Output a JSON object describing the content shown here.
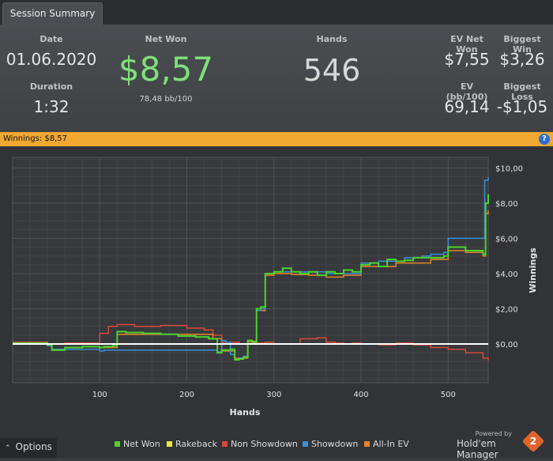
{
  "tab": {
    "label": "Session Summary"
  },
  "summary": {
    "date_label": "Date",
    "date_value": "01.06.2020",
    "duration_label": "Duration",
    "duration_value": "1:32",
    "net_won_label": "Net Won",
    "net_won_value": "$8,57",
    "bb100": "78,48 bb/100",
    "hands_label": "Hands",
    "hands_value": "546",
    "ev_net_won_label": "EV Net Won",
    "ev_net_won_value": "$7,55",
    "biggest_win_label": "Biggest Win",
    "biggest_win_value": "$3,26",
    "ev_bb_label": "EV (bb/100)",
    "ev_bb_value": "69,14",
    "biggest_loss_label": "Biggest Loss",
    "biggest_loss_value": "-$1,05"
  },
  "winnings_bar": {
    "text": "Winnings: $8,57",
    "help": "?"
  },
  "footer": {
    "options_label": "Options",
    "powered_by": "Powered by",
    "brand": "Hold'em Manager",
    "brand_badge": "2"
  },
  "colors": {
    "net_won": "#4cd42e",
    "rakeback": "#e8e840",
    "non_showdown": "#d9483c",
    "showdown": "#3a8fd8",
    "all_in_ev": "#e8852a",
    "accent": "#f0a830"
  },
  "chart_data": {
    "type": "line",
    "xlabel": "Hands",
    "ylabel": "Winnings",
    "xlim": [
      0,
      546
    ],
    "ylim": [
      -2.2,
      10.6
    ],
    "x_ticks": [
      100,
      200,
      300,
      400,
      500
    ],
    "y_ticks": [
      0,
      2,
      4,
      6,
      8,
      10
    ],
    "y_tick_labels": [
      "$0,00",
      "$2,00",
      "$4,00",
      "$6,00",
      "$8,00",
      "$10,00"
    ],
    "grid": true,
    "legend_position": "bottom",
    "series": [
      {
        "name": "Net Won",
        "color_key": "net_won",
        "x": [
          0,
          40,
          45,
          60,
          80,
          100,
          105,
          115,
          120,
          130,
          150,
          170,
          190,
          210,
          225,
          235,
          240,
          250,
          255,
          260,
          265,
          270,
          275,
          280,
          285,
          290,
          300,
          310,
          320,
          330,
          340,
          350,
          360,
          370,
          380,
          390,
          400,
          410,
          420,
          430,
          440,
          450,
          460,
          480,
          495,
          500,
          520,
          540,
          543,
          546
        ],
        "y": [
          0.05,
          -0.05,
          -0.35,
          -0.2,
          -0.15,
          -0.2,
          -0.15,
          -0.1,
          0.7,
          0.65,
          0.6,
          0.55,
          0.45,
          0.4,
          0.3,
          -0.5,
          -0.35,
          -0.3,
          -0.9,
          -0.85,
          -0.75,
          0.2,
          0.1,
          2.0,
          2.1,
          4.0,
          4.1,
          4.3,
          4.1,
          4.0,
          4.1,
          3.9,
          4.1,
          4.0,
          4.2,
          4.1,
          4.5,
          4.6,
          4.4,
          4.8,
          4.7,
          4.75,
          4.9,
          4.9,
          5.0,
          5.5,
          5.3,
          5.1,
          8.0,
          8.5
        ]
      },
      {
        "name": "Rakeback",
        "color_key": "rakeback",
        "x": [
          0,
          546
        ],
        "y": [
          0.0,
          0.0
        ]
      },
      {
        "name": "Non Showdown",
        "color_key": "non_showdown",
        "x": [
          0,
          40,
          60,
          100,
          110,
          120,
          140,
          170,
          200,
          220,
          230,
          240,
          260,
          270,
          290,
          300,
          330,
          350,
          360,
          370,
          380,
          390,
          400,
          420,
          440,
          460,
          480,
          500,
          520,
          540,
          546
        ],
        "y": [
          0.1,
          0.0,
          0.05,
          0.6,
          1.0,
          1.1,
          1.0,
          1.05,
          0.9,
          0.8,
          0.5,
          0.1,
          0.0,
          0.05,
          0.1,
          0.0,
          0.3,
          0.35,
          0.1,
          0.05,
          0.0,
          0.05,
          0.0,
          -0.05,
          0.05,
          -0.05,
          -0.2,
          -0.3,
          -0.5,
          -0.8,
          -0.95
        ]
      },
      {
        "name": "Showdown",
        "color_key": "showdown",
        "x": [
          0,
          40,
          45,
          100,
          105,
          120,
          235,
          240,
          245,
          250,
          255,
          260,
          265,
          270,
          275,
          280,
          285,
          290,
          300,
          360,
          400,
          420,
          450,
          470,
          480,
          495,
          500,
          520,
          540,
          542,
          546
        ],
        "y": [
          0.0,
          -0.1,
          -0.3,
          -0.4,
          -0.35,
          -0.35,
          -0.45,
          0.2,
          0.1,
          -0.6,
          -0.9,
          -0.8,
          -0.7,
          0.2,
          0.1,
          1.9,
          2.0,
          4.0,
          4.1,
          4.0,
          4.6,
          4.7,
          4.9,
          5.0,
          5.1,
          5.2,
          6.0,
          6.0,
          6.0,
          9.3,
          9.5
        ]
      },
      {
        "name": "All-In EV",
        "color_key": "all_in_ev",
        "x": [
          0,
          40,
          45,
          100,
          120,
          230,
          240,
          255,
          270,
          280,
          290,
          300,
          320,
          340,
          360,
          380,
          400,
          440,
          480,
          500,
          520,
          540,
          543,
          546
        ],
        "y": [
          0.0,
          -0.05,
          -0.3,
          -0.2,
          0.55,
          0.3,
          -0.4,
          -0.8,
          0.15,
          1.9,
          3.9,
          4.0,
          3.95,
          3.9,
          3.8,
          3.9,
          4.4,
          4.6,
          4.8,
          5.3,
          5.2,
          5.0,
          7.4,
          7.6
        ]
      }
    ]
  }
}
